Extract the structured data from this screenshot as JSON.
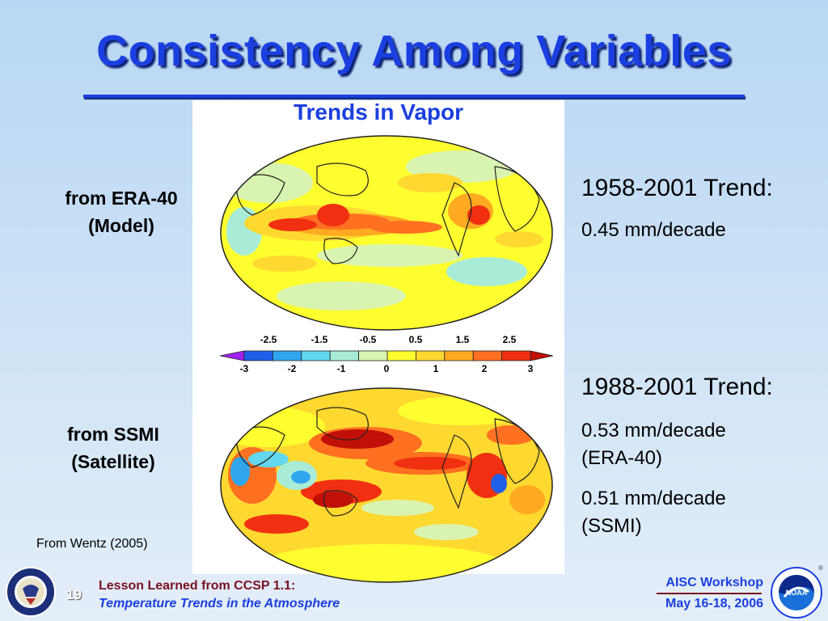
{
  "slide": {
    "title": "Consistency Among Variables",
    "page_number": "19"
  },
  "figure": {
    "subtitle": "Trends in Vapor",
    "colorbar": {
      "top_labels": [
        "-2.5",
        "-1.5",
        "-0.5",
        "0.5",
        "1.5",
        "2.5"
      ],
      "bottom_labels": [
        "-3",
        "-2",
        "-1",
        "0",
        "1",
        "2",
        "3"
      ],
      "colors": [
        "#a020f0",
        "#1f5fe8",
        "#2fa6ee",
        "#63d7ee",
        "#a8ecd8",
        "#d9f3b0",
        "#ffff30",
        "#ffd830",
        "#ffaa20",
        "#ff7020",
        "#f03010",
        "#c01008"
      ]
    },
    "credit": "From Wentz (2005)"
  },
  "labels": {
    "top_line1": "from ERA-40",
    "top_line2": "(Model)",
    "bottom_line1": "from SSMI",
    "bottom_line2": "(Satellite)"
  },
  "trends": {
    "t1_heading": "1958-2001 Trend:",
    "t1_value": "0.45 mm/decade",
    "t2_heading": "1988-2001 Trend:",
    "t2_value1": "0.53 mm/decade",
    "t2_value1_src": "(ERA-40)",
    "t2_value2": "0.51 mm/decade",
    "t2_value2_src": "(SSMI)"
  },
  "footer": {
    "left_line1": "Lesson Learned from CCSP 1.1:",
    "left_line2": "Temperature Trends in the Atmosphere",
    "right_line1": "AISC Workshop",
    "right_line2": "May 16-18, 2006",
    "seal_icon": "department-of-commerce-seal-icon",
    "noaa_icon": "noaa-logo-icon",
    "noaa_text": "NOAA",
    "registered_mark": "®"
  }
}
